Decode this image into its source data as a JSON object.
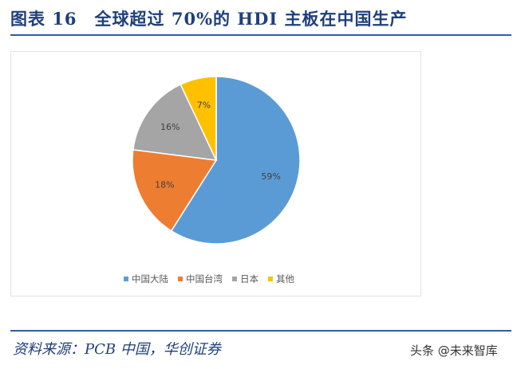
{
  "header": {
    "title": "图表 16　全球超过 70%的 HDI 主板在中国生产"
  },
  "footer": {
    "source": "资料来源：PCB 中国，华创证券",
    "watermark": "头条 @未来智库"
  },
  "chart_data": {
    "type": "pie",
    "title": "全球超过 70%的 HDI 主板在中国生产",
    "categories": [
      "中国大陆",
      "中国台湾",
      "日本",
      "其他"
    ],
    "values": [
      59,
      18,
      16,
      7
    ],
    "labels": [
      "59%",
      "18%",
      "16%",
      "7%"
    ],
    "colors": [
      "#5b9bd5",
      "#ed7d31",
      "#a5a5a5",
      "#ffc000"
    ],
    "legend_position": "bottom",
    "start_angle_deg": 0,
    "direction": "clockwise"
  }
}
